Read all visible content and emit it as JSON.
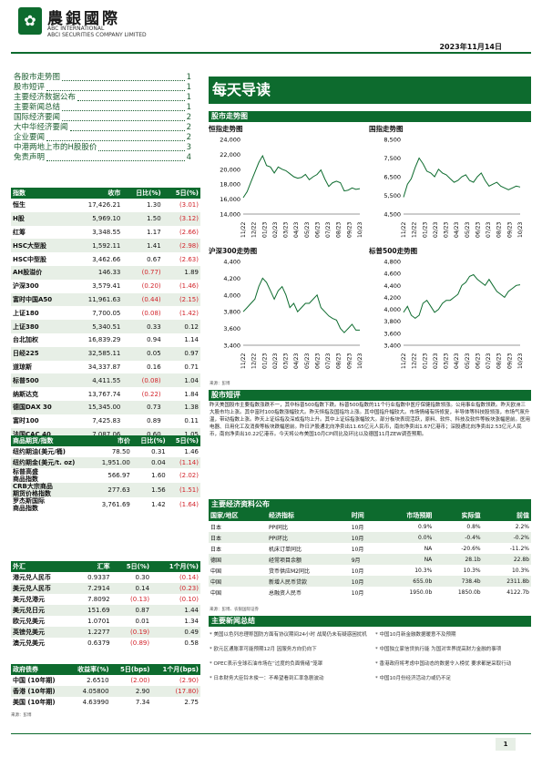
{
  "header": {
    "logo_cn": "農銀國際",
    "logo_en1": "ABC INTERNATIONAL",
    "logo_en2": "ABCI SECURITIES COMPANY LIMITED",
    "date": "2023年11月14日"
  },
  "toc": [
    {
      "label": "各股市走势图",
      "page": "1"
    },
    {
      "label": "股市短评",
      "page": "1"
    },
    {
      "label": "主要经济数据公布",
      "page": "1"
    },
    {
      "label": "主要新闻总结",
      "page": "1"
    },
    {
      "label": "国际经济要闻",
      "page": "2"
    },
    {
      "label": "大中华经济要闻",
      "page": "2"
    },
    {
      "label": "企业要闻",
      "page": "2"
    },
    {
      "label": "中港两地上市的H股股价",
      "page": "3"
    },
    {
      "label": "免责声明",
      "page": "4"
    }
  ],
  "index_table": {
    "headers": [
      "指数",
      "收市",
      "日比(%)",
      "5日(%)"
    ],
    "rows": [
      [
        "恒生",
        "17,426.21",
        "1.30",
        "(3.01)"
      ],
      [
        "H股",
        "5,969.10",
        "1.50",
        "(3.12)"
      ],
      [
        "红筹",
        "3,348.55",
        "1.17",
        "(2.66)"
      ],
      [
        "HSC大型股",
        "1,592.11",
        "1.41",
        "(2.98)"
      ],
      [
        "HSC中型股",
        "3,462.66",
        "0.67",
        "(2.63)"
      ],
      [
        "AH股溢价",
        "146.33",
        "(0.77)",
        "1.89"
      ],
      [
        "沪深300",
        "3,579.41",
        "(0.20)",
        "(1.46)"
      ],
      [
        "富时中国A50",
        "11,961.63",
        "(0.44)",
        "(2.15)"
      ],
      [
        "上证180",
        "7,700.05",
        "(0.08)",
        "(1.42)"
      ],
      [
        "上证380",
        "5,340.51",
        "0.33",
        "0.12"
      ],
      [
        "台北加权",
        "16,839.29",
        "0.94",
        "1.14"
      ],
      [
        "日经225",
        "32,585.11",
        "0.05",
        "0.97"
      ],
      [
        "道琼斯",
        "34,337.87",
        "0.16",
        "0.71"
      ],
      [
        "标普500",
        "4,411.55",
        "(0.08)",
        "1.04"
      ],
      [
        "纳斯达克",
        "13,767.74",
        "(0.22)",
        "1.84"
      ],
      [
        "德国DAX 30",
        "15,345.00",
        "0.73",
        "1.38"
      ],
      [
        "富时100",
        "7,425.83",
        "0.89",
        "0.11"
      ],
      [
        "法国CAC 40",
        "7,087.06",
        "0.60",
        "1.05"
      ]
    ]
  },
  "commodity_table": {
    "headers": [
      "商品期货/指数",
      "市价",
      "日比(%)",
      "5日(%)"
    ],
    "rows": [
      [
        "纽约期油(美元/桶)",
        "78.50",
        "0.31",
        "1.46"
      ],
      [
        "纽约期金(美元/t. oz)",
        "1,951.00",
        "0.04",
        "(1.14)"
      ],
      [
        "标普高盛\n商品指数",
        "566.97",
        "1.60",
        "(2.02)"
      ],
      [
        "CRB大宗商品\n期货价格指数",
        "277.63",
        "1.56",
        "(1.51)"
      ],
      [
        "罗杰斯国际\n商品指数",
        "3,761.69",
        "1.42",
        "(1.64)"
      ]
    ]
  },
  "fx_table": {
    "headers": [
      "外汇",
      "汇率",
      "5日(%)",
      "1个月(%)"
    ],
    "rows": [
      [
        "港元兑人民币",
        "0.9337",
        "0.30",
        "(0.14)"
      ],
      [
        "美元兑人民币",
        "7.2914",
        "0.14",
        "(0.23)"
      ],
      [
        "美元兑港元",
        "7.8092",
        "(0.13)",
        "(0.10)"
      ],
      [
        "美元兑日元",
        "151.69",
        "0.87",
        "1.44"
      ],
      [
        "欧元兑美元",
        "1.0701",
        "0.01",
        "1.34"
      ],
      [
        "英镑兑美元",
        "1.2277",
        "(0.19)",
        "0.49"
      ],
      [
        "澳元兑美元",
        "0.6379",
        "(0.89)",
        "0.58"
      ]
    ]
  },
  "bond_table": {
    "headers": [
      "政府债券",
      "收益率(%)",
      "5日(bps)",
      "1个月(bps)"
    ],
    "rows": [
      [
        "中国 (10年期)",
        "2.6510",
        "(2.00)",
        "(2.90)"
      ],
      [
        "香港 (10年期)",
        "4.05800",
        "2.90",
        "(17.80)"
      ],
      [
        "美国 (10年期)",
        "4.63990",
        "7.34",
        "2.75"
      ]
    ],
    "source": "来源：彭博"
  },
  "main_title": "每天导读",
  "charts_section": {
    "title": "股市走势图",
    "source": "来源：彭博",
    "charts": [
      {
        "title": "恒指走势图",
        "ymin": 14000,
        "ymax": 24000,
        "yticks": [
          "24,000",
          "22,000",
          "20,000",
          "18,000",
          "16,000",
          "14,000"
        ],
        "xticks": [
          "11/22",
          "12/22",
          "01/23",
          "02/23",
          "03/23",
          "04/23",
          "05/23",
          "06/23",
          "07/23",
          "08/23",
          "09/23",
          "10/23"
        ],
        "values": [
          16200,
          17000,
          18300,
          19600,
          20900,
          21800,
          20500,
          20300,
          19500,
          20300,
          20000,
          19800,
          19400,
          19000,
          18800,
          18900,
          19300,
          18600,
          19000,
          19300,
          19900,
          18700,
          17700,
          18200,
          18400,
          18200,
          17100,
          17200,
          17500,
          17300,
          17400
        ]
      },
      {
        "title": "国指走势图",
        "ymin": 4500,
        "ymax": 8500,
        "yticks": [
          "8,500",
          "7,500",
          "6,500",
          "5,500",
          "4,500"
        ],
        "xticks": [
          "11/22",
          "12/22",
          "01/23",
          "02/23",
          "03/23",
          "04/23",
          "05/23",
          "06/23",
          "07/23",
          "08/23",
          "09/23",
          "10/23"
        ],
        "values": [
          5400,
          6100,
          6400,
          7000,
          7500,
          7200,
          6800,
          6700,
          6500,
          6900,
          6700,
          6600,
          6400,
          6200,
          6300,
          6500,
          6600,
          6300,
          6200,
          6500,
          6700,
          6300,
          6000,
          6100,
          6200,
          6000,
          5900,
          5800,
          5900,
          6000,
          5950
        ]
      },
      {
        "title": "沪深300走势图",
        "ymin": 3400,
        "ymax": 4400,
        "yticks": [
          "4,400",
          "4,200",
          "4,000",
          "3,800",
          "3,600",
          "3,400"
        ],
        "xticks": [
          "11/22",
          "12/22",
          "01/23",
          "02/23",
          "03/23",
          "04/23",
          "05/23",
          "06/23",
          "07/23",
          "08/23",
          "09/23",
          "10/23"
        ],
        "values": [
          3800,
          3850,
          3900,
          3950,
          4100,
          4200,
          4150,
          4050,
          3950,
          4050,
          4100,
          4000,
          3850,
          3900,
          3800,
          3850,
          3900,
          3900,
          3950,
          4000,
          3850,
          3800,
          3750,
          3720,
          3700,
          3600,
          3550,
          3600,
          3650,
          3580,
          3580
        ]
      },
      {
        "title": "标普500走势图",
        "ymin": 3400,
        "ymax": 4800,
        "yticks": [
          "4,800",
          "4,600",
          "4,400",
          "4,200",
          "4,000",
          "3,800",
          "3,600",
          "3,400"
        ],
        "xticks": [
          "11/22",
          "12/22",
          "01/23",
          "02/23",
          "03/23",
          "04/23",
          "05/23",
          "06/23",
          "07/23",
          "08/23",
          "09/23",
          "10/23"
        ],
        "values": [
          3950,
          4050,
          3900,
          3850,
          3900,
          4100,
          4150,
          4050,
          3950,
          4000,
          4100,
          4150,
          4150,
          4200,
          4250,
          4400,
          4450,
          4550,
          4580,
          4500,
          4450,
          4400,
          4500,
          4400,
          4300,
          4250,
          4200,
          4300,
          4350,
          4400,
          4410
        ]
      }
    ]
  },
  "commentary": {
    "title": "股市短评",
    "text": "昨天美国股市主要指数涨跌不一，其中标普500指数下跌。标普500指数的11个行业指数中医疗保健指数领涨。公用事业指数领跌。昨天欧洲三大股市均上涨。其中富时100指数涨幅较大。昨天恒指及国指均上涨。其中国指升幅较大。市场情绪有所修复，半导体等科技股领涨，市场气氛升温，带动指数上涨。昨天上证综指及深成指均上升。其中上证综指涨幅较大。部分板块表现活跃，原料、软件、科技及软件等板块涨幅居前。医用电器、日用化工及消费等板块跌幅居前。昨日沪股通北向净卖出11.65亿元人民币，南向净卖出1.67亿港币；深股通北向净卖出2.53亿元人民币，南向净卖出10.22亿港币。今天将公布美国10月CPI同比及环比以及德国11月ZEW调查预期。"
  },
  "econ_section": {
    "title": "主要经济资料公布",
    "headers": [
      "国家/地区",
      "经济指标",
      "时间",
      "市场预期",
      "实际值",
      "前值"
    ],
    "rows": [
      [
        "日本",
        "PPI同比",
        "10月",
        "0.9%",
        "0.8%",
        "2.2%"
      ],
      [
        "日本",
        "PPI环比",
        "10月",
        "0.0%",
        "-0.4%",
        "-0.2%"
      ],
      [
        "日本",
        "机床订单同比",
        "10月",
        "NA",
        "-20.6%",
        "-11.2%"
      ],
      [
        "德国",
        "经常项目余额",
        "9月",
        "NA",
        "28.1b",
        "22.8b"
      ],
      [
        "中国",
        "货币供应M2同比",
        "10月",
        "10.3%",
        "10.3%",
        "10.3%"
      ],
      [
        "中国",
        "新增人民币贷款",
        "10月",
        "655.0b",
        "738.4b",
        "2311.8b"
      ],
      [
        "中国",
        "总融资人民币",
        "10月",
        "1950.0b",
        "1850.0b",
        "4122.7b"
      ]
    ],
    "source": "来源：彭博、农银国际证券"
  },
  "news_section": {
    "title": "主要新闻总结",
    "left": [
      "美国以色列总理称国防方面有协议期间24小时 战局仍未有疑惑困扰机",
      "欧元区通胀率可能预期12月 因服务方向仍向下",
      "OPEC表示全球石油市场在“过度的负面情绪”笼罩",
      "日本财务大臣铃木俊一：不希望看到汇率急剧波动"
    ],
    "right": [
      "中国10月新金融数据暖意不及预期",
      "中国独立家信贷执行能 为国对世界提高财力金融的事项",
      "香港政府将考虑中国动态的数据令入榜优 要求都是采取行动",
      "中国10月份经济活动力或仍不足"
    ]
  },
  "footer": {
    "page": "1"
  }
}
